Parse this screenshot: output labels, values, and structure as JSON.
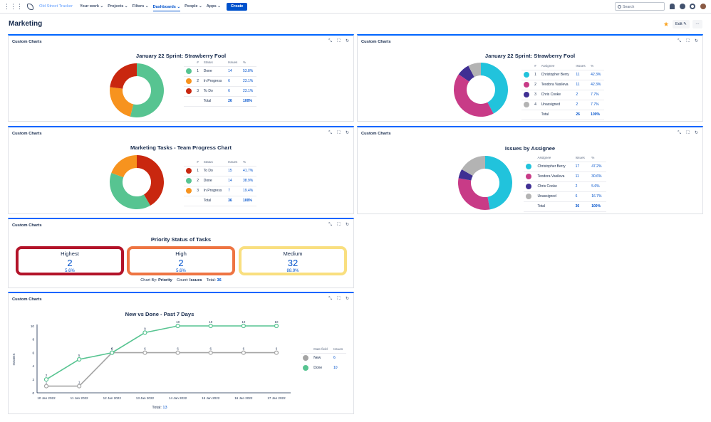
{
  "nav": {
    "product": "Old Street Tracker",
    "items": [
      "Your work ⌄",
      "Projects ⌄",
      "Filters ⌄",
      "Dashboards ⌄",
      "People ⌄",
      "Apps ⌄"
    ],
    "create": "Create",
    "search_placeholder": "Search"
  },
  "page": {
    "title": "Marketing",
    "edit": "Edit ✎",
    "more": "···"
  },
  "gadget_title": "Custom Charts",
  "charts": {
    "sprint_status": {
      "title": "January 22 Sprint: Strawberry Fool",
      "headers": [
        "#",
        "Status",
        "Issues",
        "%"
      ],
      "rows": [
        {
          "n": "1",
          "label": "Done",
          "issues": 14,
          "pct": "53.8%",
          "color": "#57c491"
        },
        {
          "n": "2",
          "label": "In Progress",
          "issues": 6,
          "pct": "23.1%",
          "color": "#f7931e"
        },
        {
          "n": "3",
          "label": "To Do",
          "issues": 6,
          "pct": "23.1%",
          "color": "#c9270f"
        }
      ],
      "total_label": "Total",
      "total": "26",
      "total_pct": "100%"
    },
    "sprint_assignee": {
      "title": "January 22 Sprint: Strawberry Fool",
      "headers": [
        "#",
        "Assignee",
        "Issues",
        "%"
      ],
      "rows": [
        {
          "n": "1",
          "label": "Christopher Berry",
          "issues": 11,
          "pct": "42.3%",
          "color": "#21c3dc"
        },
        {
          "n": "2",
          "label": "Teodora Vasileva",
          "issues": 11,
          "pct": "42.3%",
          "color": "#c83b87"
        },
        {
          "n": "3",
          "label": "Chris Cooke",
          "issues": 2,
          "pct": "7.7%",
          "color": "#3f2f93"
        },
        {
          "n": "4",
          "label": "Unassigned",
          "issues": 2,
          "pct": "7.7%",
          "color": "#b3b3b3"
        }
      ],
      "total_label": "Total",
      "total": "26",
      "total_pct": "100%"
    },
    "team_progress": {
      "title": "Marketing Tasks - Team Progress Chart",
      "headers": [
        "#",
        "Status",
        "Issues",
        "%"
      ],
      "rows": [
        {
          "n": "1",
          "label": "To Do",
          "issues": 15,
          "pct": "41.7%",
          "color": "#c9270f"
        },
        {
          "n": "2",
          "label": "Done",
          "issues": 14,
          "pct": "38.9%",
          "color": "#57c491"
        },
        {
          "n": "3",
          "label": "In Progress",
          "issues": 7,
          "pct": "19.4%",
          "color": "#f7931e"
        }
      ],
      "total_label": "Total",
      "total": "36",
      "total_pct": "100%"
    },
    "by_assignee": {
      "title": "Issues by Assignee",
      "headers": [
        "Assignee",
        "Issues",
        "%"
      ],
      "rows": [
        {
          "label": "Christopher Berry",
          "issues": 17,
          "pct": "47.2%",
          "color": "#21c3dc"
        },
        {
          "label": "Teodora Vasileva",
          "issues": 11,
          "pct": "30.6%",
          "color": "#c83b87"
        },
        {
          "label": "Chris Cooke",
          "issues": 2,
          "pct": "5.6%",
          "color": "#3f2f93"
        },
        {
          "label": "Unassigned",
          "issues": 6,
          "pct": "16.7%",
          "color": "#b3b3b3"
        }
      ],
      "total_label": "Total",
      "total": "36",
      "total_pct": "100%"
    },
    "priority": {
      "title": "Priority Status of Tasks",
      "boxes": [
        {
          "label": "Highest",
          "value": "2",
          "pct": "5.6%",
          "color": "#b31329"
        },
        {
          "label": "High",
          "value": "2",
          "pct": "5.6%",
          "color": "#ee7442"
        },
        {
          "label": "Medium",
          "value": "32",
          "pct": "88.9%",
          "color": "#f9df7f"
        }
      ],
      "chart_by_label": "Chart By:",
      "chart_by": "Priority",
      "count_label": "Count:",
      "count": "Issues",
      "total_label": "Total:",
      "total": "36"
    }
  },
  "chart_data": {
    "type": "line",
    "title": "New vs Done - Past 7 Days",
    "ylabel": "ISSUES",
    "x": [
      "10 Jan 2022",
      "11 Jan 2022",
      "12 Jan 2022",
      "13 Jan 2022",
      "14 Jan 2022",
      "15 Jan 2022",
      "16 Jan 2022",
      "17 Jan 2022"
    ],
    "ylim": [
      0,
      10
    ],
    "yticks": [
      "0",
      "2",
      "4",
      "6",
      "8",
      "10"
    ],
    "series": [
      {
        "name": "New",
        "values": [
          1,
          1,
          6,
          6,
          6,
          6,
          6,
          6
        ],
        "color": "#a5a5a5"
      },
      {
        "name": "Done",
        "values": [
          2,
          5,
          6,
          9,
          10,
          10,
          10,
          10
        ],
        "color": "#57c491"
      }
    ],
    "legend_headers": [
      "Date field",
      "Issues"
    ],
    "legend_values": [
      "6",
      "10"
    ],
    "total_label": "Total:",
    "total": "13"
  }
}
